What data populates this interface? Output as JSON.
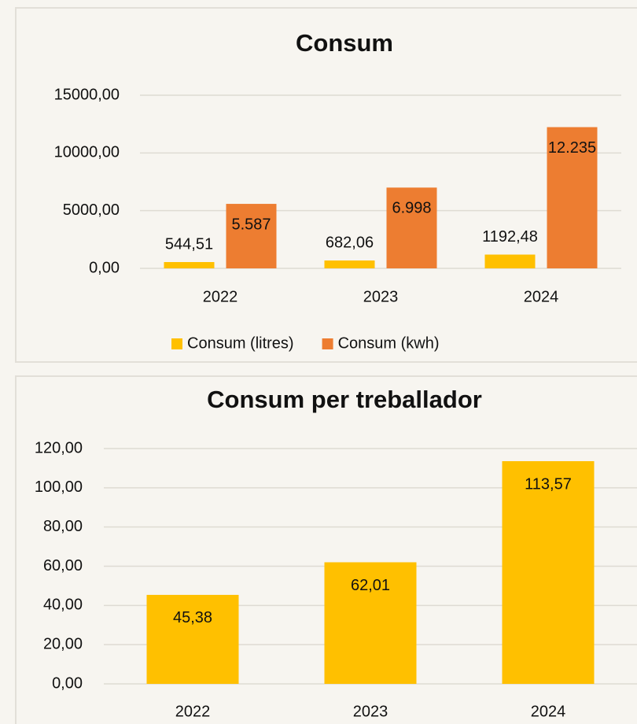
{
  "chart_data": [
    {
      "type": "bar",
      "title": "Consum",
      "categories": [
        "2022",
        "2023",
        "2024"
      ],
      "series": [
        {
          "name": "Consum (litres)",
          "color": "#ffc000",
          "values": [
            544.51,
            682.06,
            1192.48
          ],
          "value_labels": [
            "544,51",
            "682,06",
            "1192,48"
          ]
        },
        {
          "name": "Consum (kwh)",
          "color": "#ed7d31",
          "values": [
            5587,
            6998,
            12235
          ],
          "value_labels": [
            "5.587",
            "6.998",
            "12.235"
          ]
        }
      ],
      "ylim": [
        0,
        15000
      ],
      "yticks": [
        {
          "value": 0,
          "label": "0,00"
        },
        {
          "value": 5000,
          "label": "5000,00"
        },
        {
          "value": 10000,
          "label": "10000,00"
        },
        {
          "value": 15000,
          "label": "15000,00"
        }
      ],
      "grid": true,
      "legend": "bottom"
    },
    {
      "type": "bar",
      "title": "Consum per treballador",
      "categories": [
        "2022",
        "2023",
        "2024"
      ],
      "values": [
        45.38,
        62.01,
        113.57
      ],
      "value_labels": [
        "45,38",
        "62,01",
        "113,57"
      ],
      "color": "#ffc000",
      "ylim": [
        0,
        120
      ],
      "yticks": [
        {
          "value": 0,
          "label": "0,00"
        },
        {
          "value": 20,
          "label": "20,00"
        },
        {
          "value": 40,
          "label": "40,00"
        },
        {
          "value": 60,
          "label": "60,00"
        },
        {
          "value": 80,
          "label": "80,00"
        },
        {
          "value": 100,
          "label": "100,00"
        },
        {
          "value": 120,
          "label": "120,00"
        }
      ],
      "grid": true
    }
  ]
}
